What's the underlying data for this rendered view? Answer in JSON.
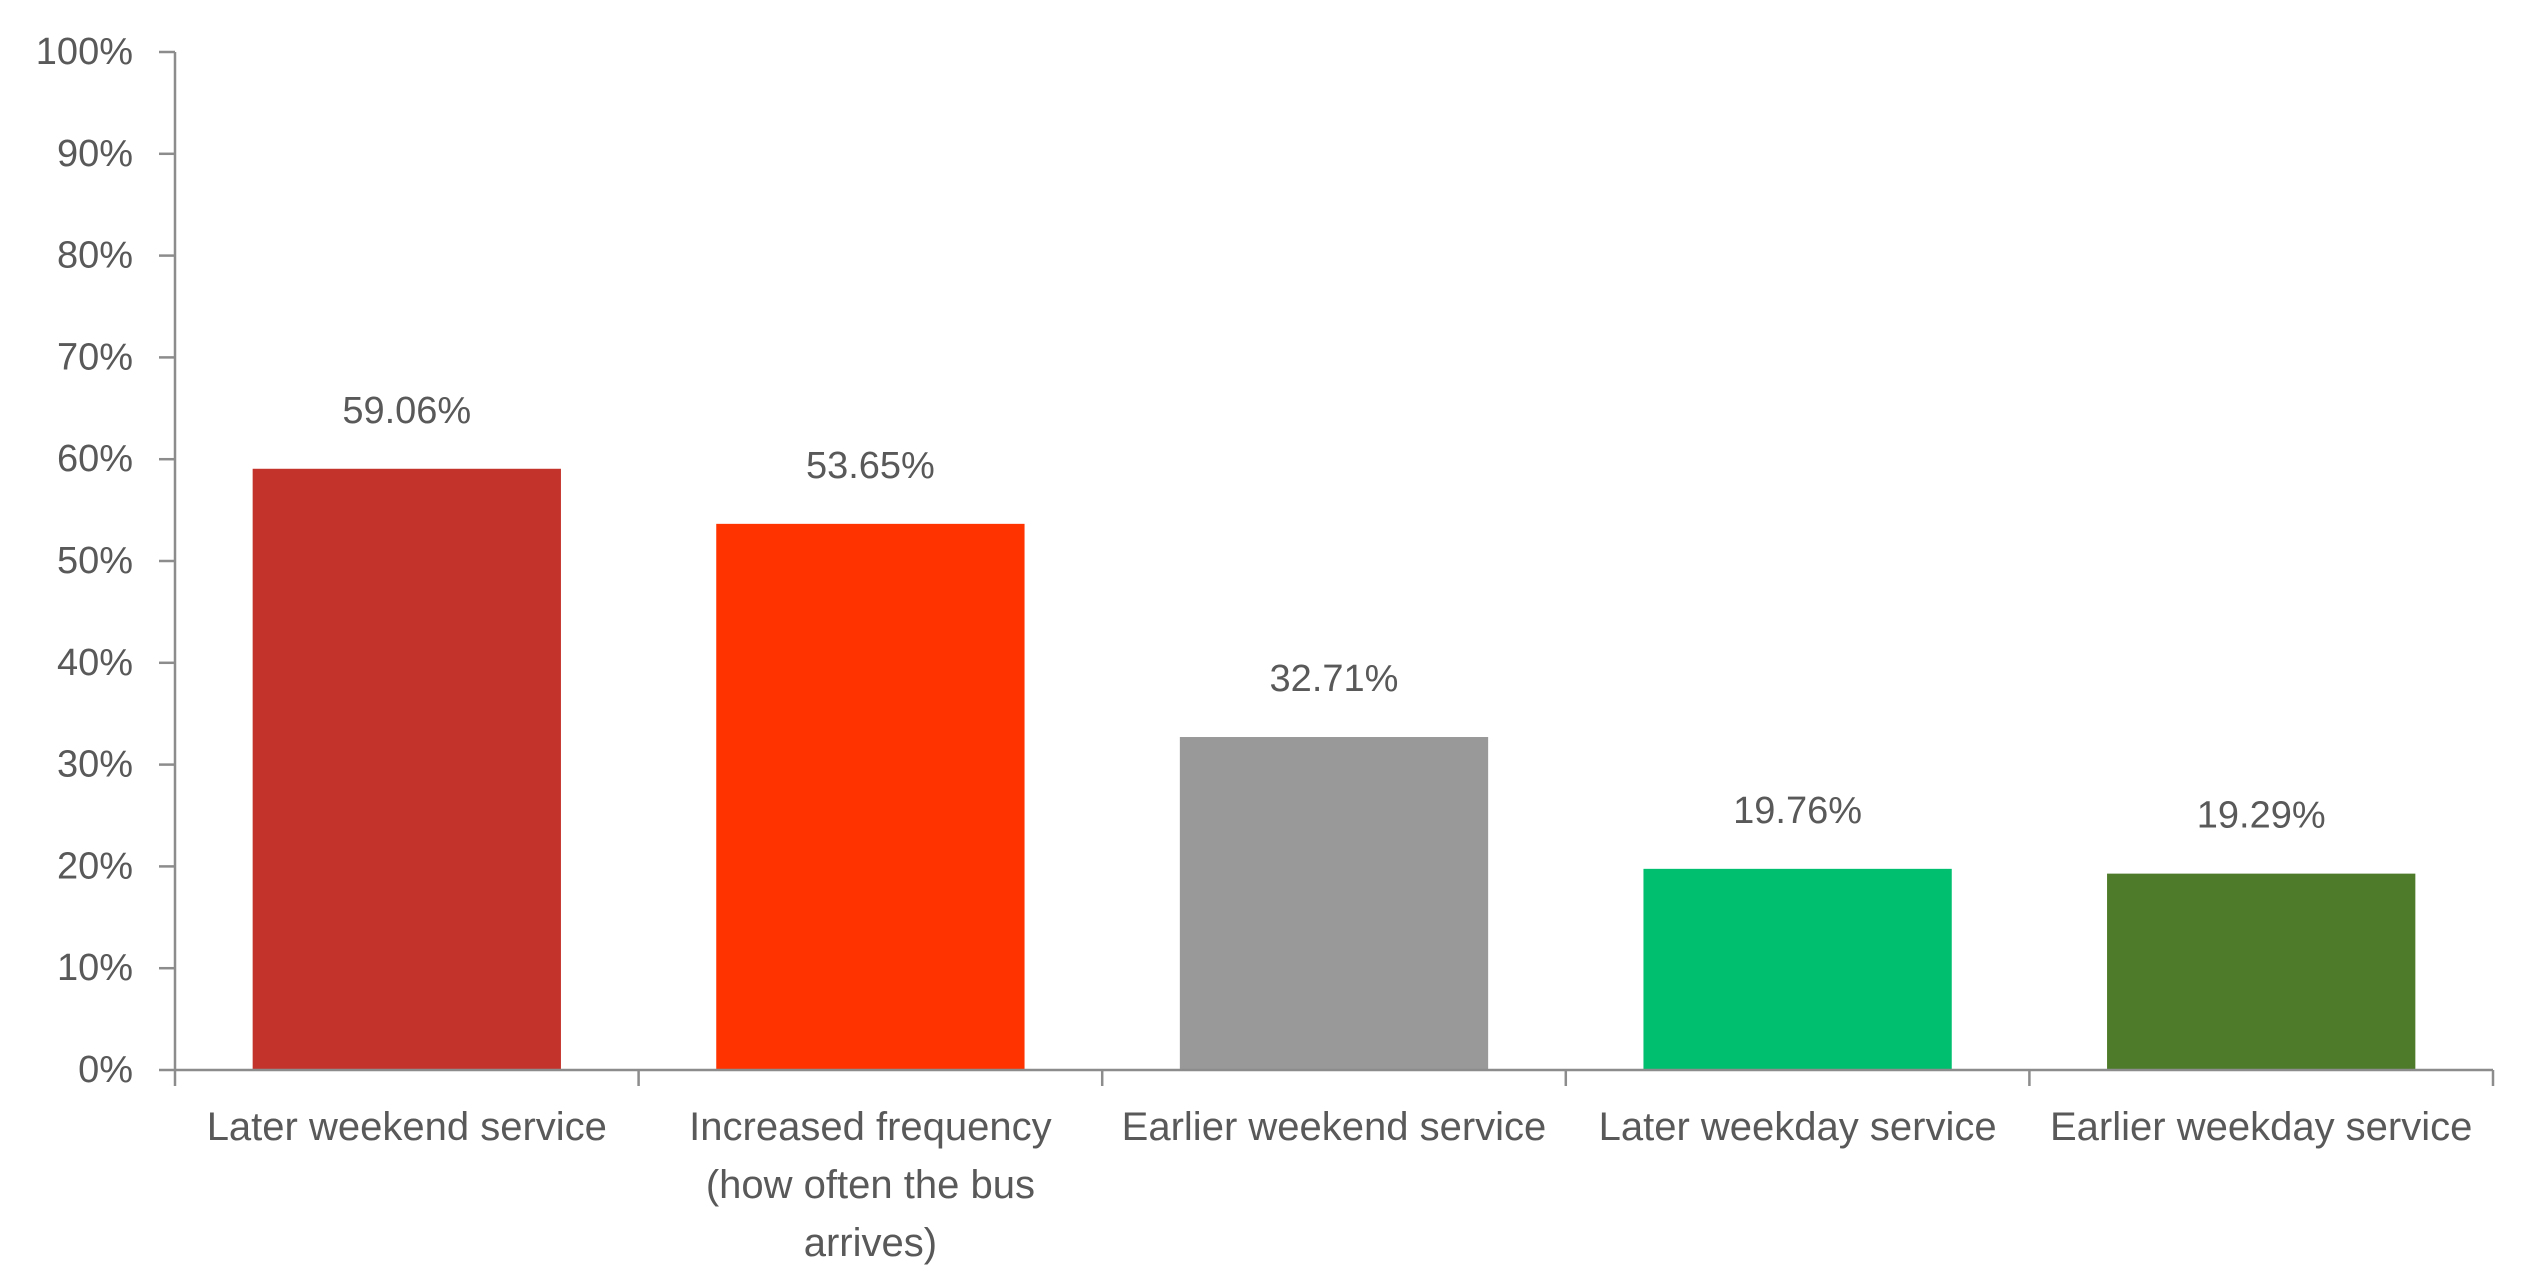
{
  "chart_data": {
    "type": "bar",
    "title": "",
    "xlabel": "",
    "ylabel": "",
    "ylim": [
      0,
      100
    ],
    "y_ticks": [
      0,
      10,
      20,
      30,
      40,
      50,
      60,
      70,
      80,
      90,
      100
    ],
    "y_tick_format": "percent",
    "grid": false,
    "legend": "none",
    "categories": [
      "Later weekend service",
      "Increased frequency (how often the bus arrives)",
      "Earlier weekend service",
      "Later weekday service",
      "Earlier weekday service"
    ],
    "category_lines": [
      [
        "Later weekend service"
      ],
      [
        "Increased frequency",
        "(how often the bus",
        "arrives)"
      ],
      [
        "Earlier weekend service"
      ],
      [
        "Later weekday service"
      ],
      [
        "Earlier weekday service"
      ]
    ],
    "values": [
      59.06,
      53.65,
      32.71,
      19.76,
      19.29
    ],
    "data_labels": [
      "59.06%",
      "53.65%",
      "32.71%",
      "19.76%",
      "19.29%"
    ],
    "colors": [
      "#C4332B",
      "#FF3300",
      "#999999",
      "#00BF6F",
      "#4E7B2A"
    ]
  }
}
